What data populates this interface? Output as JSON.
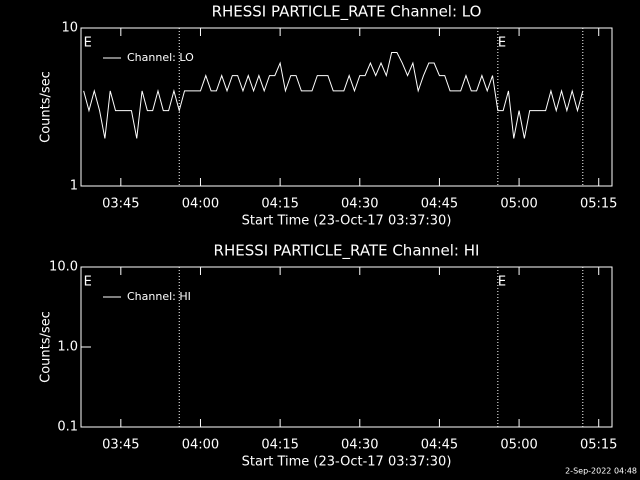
{
  "chart_data": [
    {
      "type": "line",
      "title": "RHESSI PARTICLE_RATE Channel: LO",
      "xlabel": "Start Time (23-Oct-17 03:37:30)",
      "ylabel": "Counts/sec",
      "x": [
        "03:38",
        "03:39",
        "03:40",
        "03:41",
        "03:42",
        "03:43",
        "03:44",
        "03:45",
        "03:46",
        "03:47",
        "03:48",
        "03:49",
        "03:50",
        "03:51",
        "03:52",
        "03:53",
        "03:54",
        "03:55",
        "03:56",
        "03:57",
        "03:58",
        "03:59",
        "04:00",
        "04:01",
        "04:02",
        "04:03",
        "04:04",
        "04:05",
        "04:06",
        "04:07",
        "04:08",
        "04:09",
        "04:10",
        "04:11",
        "04:12",
        "04:13",
        "04:14",
        "04:15",
        "04:16",
        "04:17",
        "04:18",
        "04:19",
        "04:20",
        "04:21",
        "04:22",
        "04:23",
        "04:24",
        "04:25",
        "04:26",
        "04:27",
        "04:28",
        "04:29",
        "04:30",
        "04:31",
        "04:32",
        "04:33",
        "04:34",
        "04:35",
        "04:36",
        "04:37",
        "04:38",
        "04:39",
        "04:40",
        "04:41",
        "04:42",
        "04:43",
        "04:44",
        "04:45",
        "04:46",
        "04:47",
        "04:48",
        "04:49",
        "04:50",
        "04:51",
        "04:52",
        "04:53",
        "04:54",
        "04:55",
        "04:56",
        "04:57",
        "04:58",
        "04:59",
        "05:00",
        "05:01",
        "05:02",
        "05:03",
        "05:04",
        "05:05",
        "05:06",
        "05:07",
        "05:08",
        "05:09",
        "05:10",
        "05:11",
        "05:12"
      ],
      "series": [
        {
          "name": "Channel: LO",
          "color": "#ffffff",
          "values": [
            4,
            3,
            4,
            3,
            2,
            4,
            3,
            3,
            3,
            3,
            2,
            4,
            3,
            3,
            4,
            3,
            3,
            4,
            3,
            4,
            4,
            4,
            4,
            5,
            4,
            4,
            5,
            4,
            5,
            5,
            4,
            5,
            4,
            5,
            4,
            5,
            5,
            6,
            4,
            5,
            5,
            4,
            4,
            4,
            5,
            5,
            5,
            4,
            4,
            4,
            5,
            4,
            5,
            5,
            6,
            5,
            6,
            5,
            7,
            7,
            6,
            5,
            6,
            4,
            5,
            6,
            6,
            5,
            5,
            4,
            4,
            4,
            5,
            4,
            4,
            5,
            4,
            5,
            3,
            3,
            4,
            2,
            3,
            2,
            3,
            3,
            3,
            3,
            4,
            3,
            4,
            3,
            4,
            3,
            4
          ]
        }
      ],
      "xlim": [
        "03:37:30",
        "05:17:30"
      ],
      "xticks": [
        "03:45",
        "04:00",
        "04:15",
        "04:30",
        "04:45",
        "05:00",
        "05:15"
      ],
      "ylim": [
        1,
        10
      ],
      "yticks": [
        1,
        10
      ],
      "log_y": true,
      "vlines": [
        "03:56",
        "04:56",
        "05:12"
      ],
      "event_labels": [
        {
          "x": "03:38",
          "label": "E"
        },
        {
          "x": "04:56",
          "label": "E"
        }
      ]
    },
    {
      "type": "line",
      "title": "RHESSI PARTICLE_RATE Channel: HI",
      "xlabel": "Start Time (23-Oct-17 03:37:30)",
      "ylabel": "Counts/sec",
      "x": [],
      "series": [
        {
          "name": "Channel: HI",
          "color": "#ffffff",
          "values": []
        }
      ],
      "xlim": [
        "03:37:30",
        "05:17:30"
      ],
      "xticks": [
        "03:45",
        "04:00",
        "04:15",
        "04:30",
        "04:45",
        "05:00",
        "05:15"
      ],
      "ylim": [
        0.1,
        10
      ],
      "yticks": [
        0.1,
        {
          "value": 1,
          "label": "1.0"
        },
        {
          "value": 10,
          "label": "10.0"
        }
      ],
      "log_y": true,
      "vlines": [
        "03:56",
        "04:56",
        "05:12"
      ],
      "event_labels": [
        {
          "x": "03:38",
          "label": "E"
        },
        {
          "x": "04:56",
          "label": "E"
        }
      ]
    }
  ],
  "footer": "2-Sep-2022 04:48"
}
